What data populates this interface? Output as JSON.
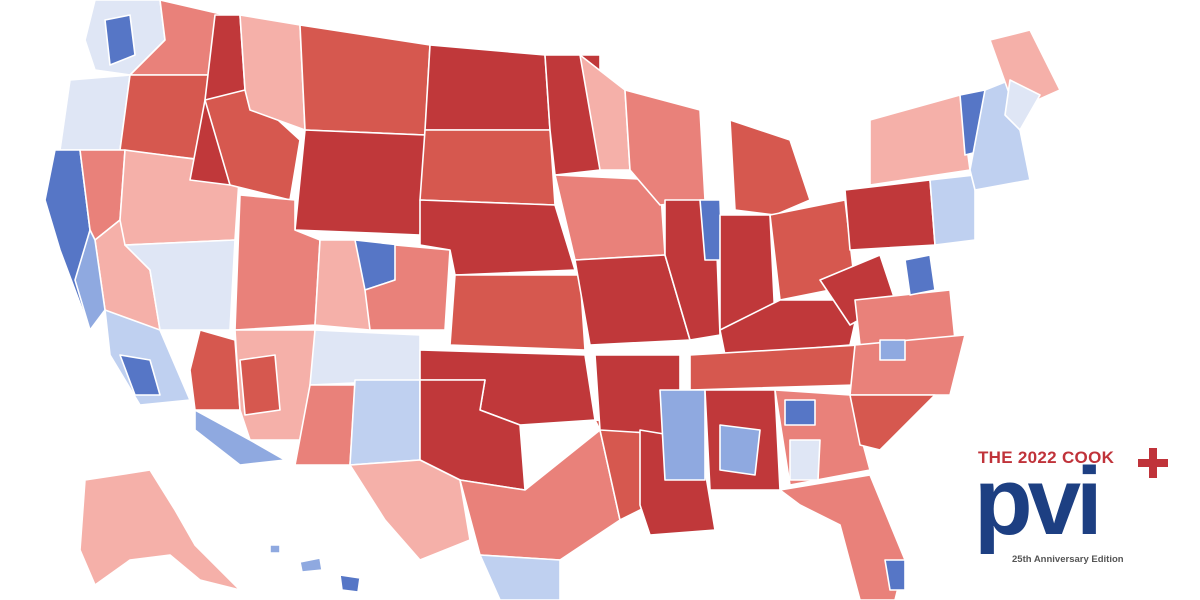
{
  "logo": {
    "line1": "THE 2022 COOK",
    "wordmark": "pvi",
    "edition": "25th Anniversary Edition",
    "mark": "plus-icon"
  },
  "colors": {
    "background": "#ffffff",
    "border": "#ffffff",
    "brand_red": "#c0333a",
    "brand_blue": "#1d3f82",
    "scale": {
      "strong_r": "#c0383a",
      "likely_r": "#d6584f",
      "lean_r": "#e9817a",
      "tilt_r": "#f5b0a9",
      "even": "#f0e6e8",
      "tilt_d": "#dfe6f5",
      "lean_d": "#bfd0f0",
      "likely_d": "#8fa9e0",
      "strong_d": "#5676c6"
    }
  }
}
